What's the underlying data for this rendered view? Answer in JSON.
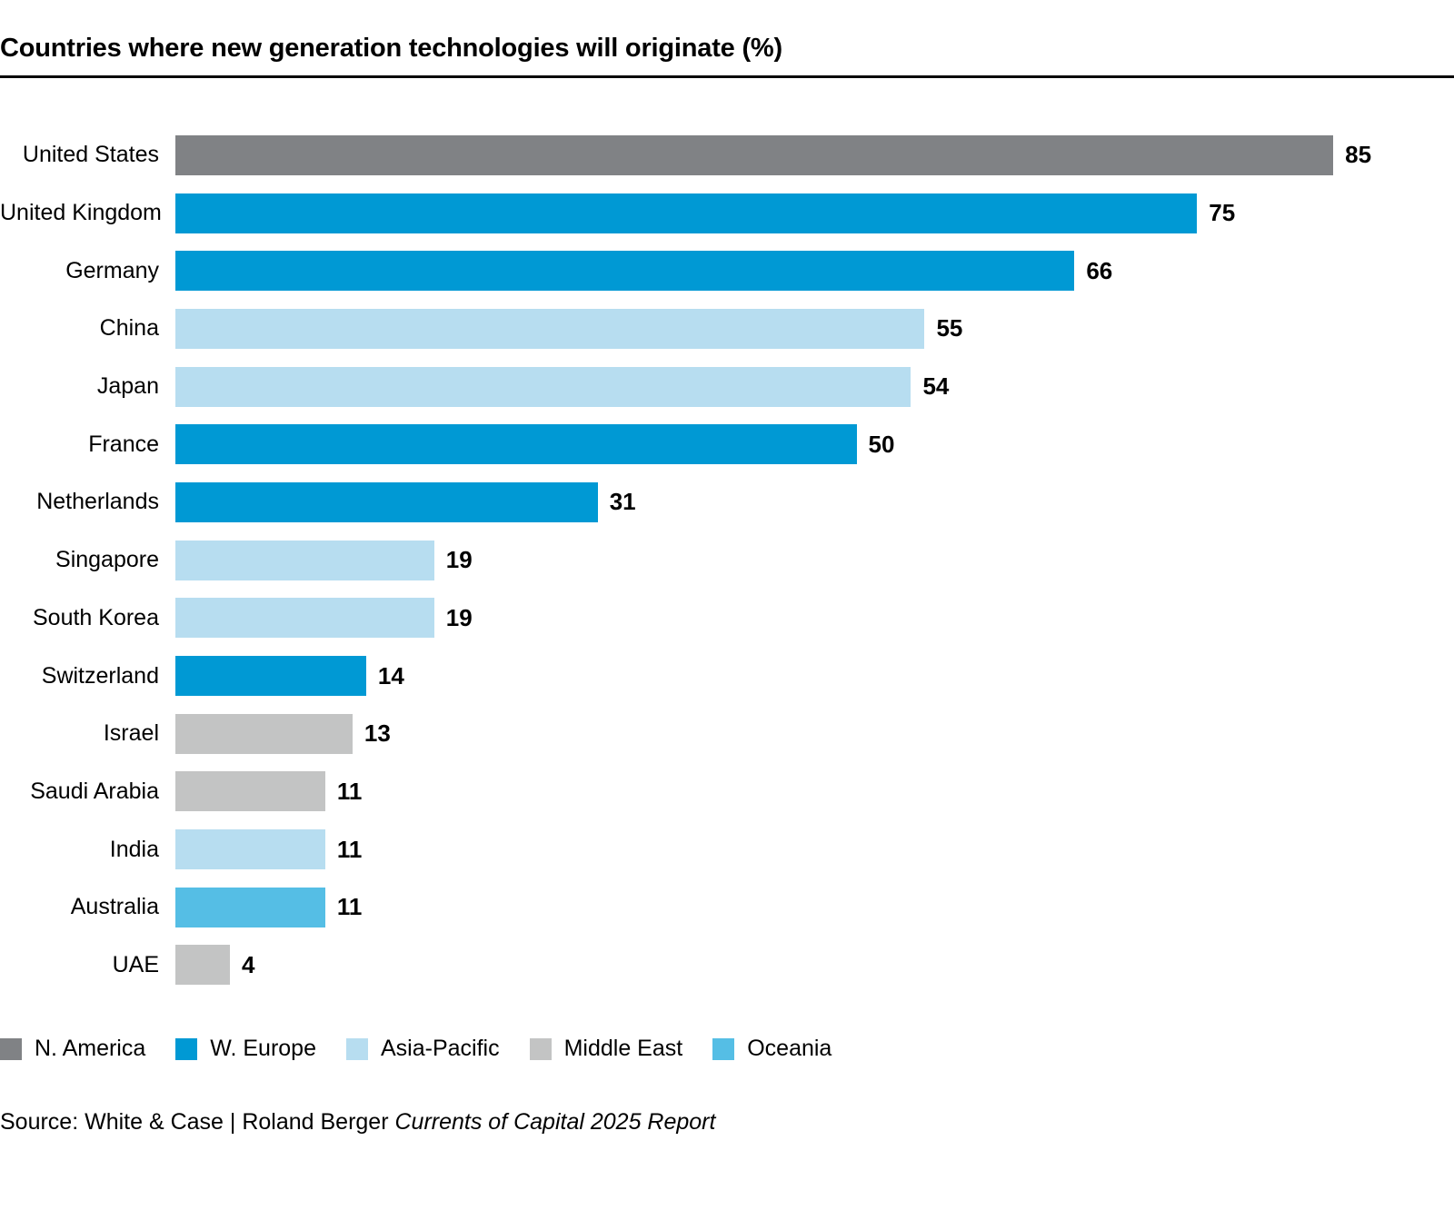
{
  "title": "Countries where new generation technologies will originate (%)",
  "chart_data": {
    "type": "bar",
    "orientation": "horizontal",
    "title": "Countries where new generation technologies will originate (%)",
    "categories": [
      "United States",
      "United Kingdom",
      "Germany",
      "China",
      "Japan",
      "France",
      "Netherlands",
      "Singapore",
      "South Korea",
      "Switzerland",
      "Israel",
      "Saudi Arabia",
      "India",
      "Australia",
      "UAE"
    ],
    "values": [
      85,
      75,
      66,
      55,
      54,
      50,
      31,
      19,
      19,
      14,
      13,
      11,
      11,
      11,
      4
    ],
    "regions": [
      "N. America",
      "W. Europe",
      "W. Europe",
      "Asia-Pacific",
      "Asia-Pacific",
      "W. Europe",
      "W. Europe",
      "Asia-Pacific",
      "Asia-Pacific",
      "W. Europe",
      "Middle East",
      "Middle East",
      "Asia-Pacific",
      "Oceania",
      "Middle East"
    ],
    "xlim": [
      0,
      85
    ],
    "grid": false,
    "legend_position": "bottom",
    "value_labels": "outside-end"
  },
  "region_colors": {
    "N. America": "#808285",
    "W. Europe": "#0099D4",
    "Asia-Pacific": "#B7DDF0",
    "Middle East": "#C3C4C4",
    "Oceania": "#55BEE5"
  },
  "legend": {
    "items": [
      {
        "label": "N. America",
        "color": "#808285"
      },
      {
        "label": "W. Europe",
        "color": "#0099D4"
      },
      {
        "label": "Asia-Pacific",
        "color": "#B7DDF0"
      },
      {
        "label": "Middle East",
        "color": "#C3C4C4"
      },
      {
        "label": "Oceania",
        "color": "#55BEE5"
      }
    ]
  },
  "source": {
    "prefix": "Source: White & Case | Roland Berger ",
    "report": "Currents of Capital 2025 Report"
  }
}
